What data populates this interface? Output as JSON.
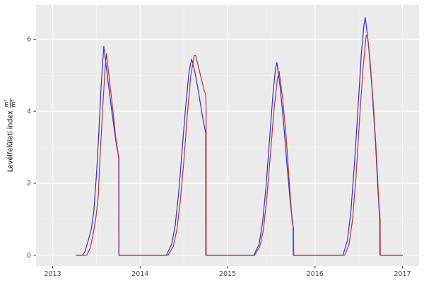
{
  "figure": {
    "background": "#ffffff",
    "panel_background": "#ebebeb",
    "grid_major_color": "#ffffff",
    "grid_minor_color": "#f5f5f5",
    "axis_tick_color": "#333333",
    "tick_label_color": "#4d4d4d"
  },
  "chart_data": {
    "type": "line",
    "title": "",
    "xlabel": "",
    "ylabel": "Levélfelületi index",
    "ylabel_unit": {
      "numerator": "m²",
      "denominator": "m²"
    },
    "x_unit": "year (decimal)",
    "xlim": [
      2012.81,
      2017.19
    ],
    "ylim": [
      -0.3,
      6.95
    ],
    "x_ticks": [
      "2013",
      "2014",
      "2015",
      "2016",
      "2017"
    ],
    "x_tick_values": [
      2013,
      2014,
      2015,
      2016,
      2017
    ],
    "x_minor_ticks": [
      2013.5,
      2014.5,
      2015.5,
      2016.5
    ],
    "y_ticks": [
      "0",
      "2",
      "4",
      "6"
    ],
    "y_tick_values": [
      0,
      2,
      4,
      6
    ],
    "y_minor_ticks": [
      1,
      3,
      5
    ],
    "grid": true,
    "legend": "none",
    "series": [
      {
        "name": "blue-line",
        "color": "#2d2dd5",
        "points": [
          [
            2013.27,
            0
          ],
          [
            2013.34,
            0
          ],
          [
            2013.37,
            0.1
          ],
          [
            2013.4,
            0.35
          ],
          [
            2013.44,
            0.7
          ],
          [
            2013.47,
            1.2
          ],
          [
            2013.5,
            2.2
          ],
          [
            2013.53,
            3.5
          ],
          [
            2013.55,
            4.5
          ],
          [
            2013.57,
            5.3
          ],
          [
            2013.585,
            5.8
          ],
          [
            2013.62,
            5.1
          ],
          [
            2013.65,
            4.5
          ],
          [
            2013.69,
            3.75
          ],
          [
            2013.73,
            3.05
          ],
          [
            2013.755,
            2.75
          ],
          [
            2013.757,
            0
          ],
          [
            2014.3,
            0
          ],
          [
            2014.36,
            0.3
          ],
          [
            2014.4,
            0.8
          ],
          [
            2014.44,
            1.7
          ],
          [
            2014.48,
            2.9
          ],
          [
            2014.52,
            4.1
          ],
          [
            2014.56,
            5.1
          ],
          [
            2014.59,
            5.45
          ],
          [
            2014.63,
            5.05
          ],
          [
            2014.67,
            4.5
          ],
          [
            2014.71,
            3.9
          ],
          [
            2014.75,
            3.4
          ],
          [
            2014.751,
            0
          ],
          [
            2015.3,
            0
          ],
          [
            2015.36,
            0.3
          ],
          [
            2015.4,
            0.9
          ],
          [
            2015.44,
            1.9
          ],
          [
            2015.48,
            3.2
          ],
          [
            2015.52,
            4.5
          ],
          [
            2015.55,
            5.2
          ],
          [
            2015.565,
            5.35
          ],
          [
            2015.6,
            4.7
          ],
          [
            2015.64,
            3.7
          ],
          [
            2015.68,
            2.5
          ],
          [
            2015.72,
            1.4
          ],
          [
            2015.75,
            0.8
          ],
          [
            2015.752,
            0
          ],
          [
            2016.32,
            0
          ],
          [
            2016.37,
            0.4
          ],
          [
            2016.41,
            1.2
          ],
          [
            2016.45,
            2.5
          ],
          [
            2016.49,
            4.0
          ],
          [
            2016.53,
            5.6
          ],
          [
            2016.56,
            6.4
          ],
          [
            2016.575,
            6.6
          ],
          [
            2016.61,
            5.9
          ],
          [
            2016.65,
            4.7
          ],
          [
            2016.69,
            3.2
          ],
          [
            2016.72,
            1.8
          ],
          [
            2016.74,
            1.0
          ],
          [
            2016.742,
            0
          ],
          [
            2017.0,
            0
          ]
        ]
      },
      {
        "name": "red-line",
        "color": "#b23535",
        "points": [
          [
            2013.27,
            0
          ],
          [
            2013.39,
            0
          ],
          [
            2013.43,
            0.2
          ],
          [
            2013.46,
            0.55
          ],
          [
            2013.49,
            0.95
          ],
          [
            2013.52,
            1.6
          ],
          [
            2013.54,
            2.6
          ],
          [
            2013.57,
            4.0
          ],
          [
            2013.6,
            5.2
          ],
          [
            2013.615,
            5.6
          ],
          [
            2013.65,
            4.85
          ],
          [
            2013.69,
            4.0
          ],
          [
            2013.72,
            3.3
          ],
          [
            2013.748,
            2.85
          ],
          [
            2013.752,
            2.72
          ],
          [
            2013.758,
            2.7
          ],
          [
            2013.759,
            0
          ],
          [
            2014.32,
            0
          ],
          [
            2014.38,
            0.25
          ],
          [
            2014.42,
            0.7
          ],
          [
            2014.46,
            1.5
          ],
          [
            2014.5,
            2.6
          ],
          [
            2014.54,
            3.9
          ],
          [
            2014.58,
            5.0
          ],
          [
            2014.62,
            5.55
          ],
          [
            2014.635,
            5.55
          ],
          [
            2014.67,
            5.2
          ],
          [
            2014.7,
            4.9
          ],
          [
            2014.73,
            4.6
          ],
          [
            2014.75,
            4.45
          ],
          [
            2014.755,
            4.2
          ],
          [
            2014.756,
            0
          ],
          [
            2015.31,
            0
          ],
          [
            2015.37,
            0.25
          ],
          [
            2015.41,
            0.7
          ],
          [
            2015.45,
            1.6
          ],
          [
            2015.49,
            2.8
          ],
          [
            2015.53,
            4.0
          ],
          [
            2015.57,
            4.9
          ],
          [
            2015.59,
            5.1
          ],
          [
            2015.63,
            4.35
          ],
          [
            2015.67,
            3.3
          ],
          [
            2015.71,
            1.9
          ],
          [
            2015.74,
            0.9
          ],
          [
            2015.755,
            0.75
          ],
          [
            2015.757,
            0
          ],
          [
            2016.34,
            0
          ],
          [
            2016.39,
            0.3
          ],
          [
            2016.43,
            1.0
          ],
          [
            2016.47,
            2.2
          ],
          [
            2016.51,
            3.8
          ],
          [
            2016.55,
            5.2
          ],
          [
            2016.585,
            6.1
          ],
          [
            2016.6,
            6.1
          ],
          [
            2016.63,
            5.4
          ],
          [
            2016.67,
            4.1
          ],
          [
            2016.7,
            2.9
          ],
          [
            2016.73,
            1.5
          ],
          [
            2016.745,
            1.0
          ],
          [
            2016.747,
            0
          ],
          [
            2017.0,
            0
          ]
        ]
      }
    ]
  }
}
